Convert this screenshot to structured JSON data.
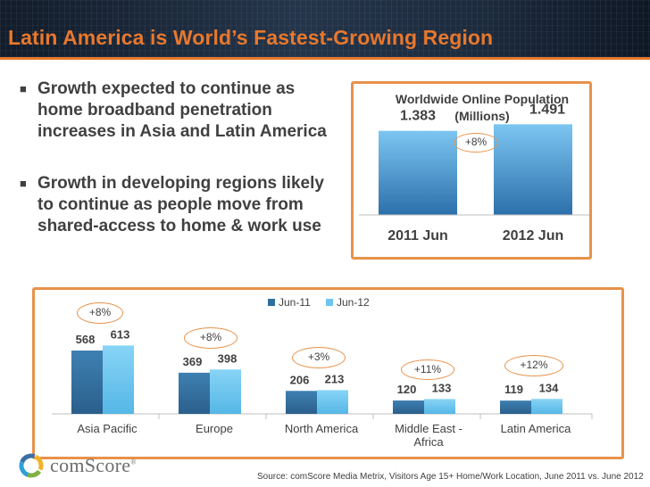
{
  "title": "Latin America is World’s Fastest-Growing Region",
  "bullets": [
    "Growth expected to continue as home broadband penetration increases in Asia and Latin America",
    "Growth in developing regions likely to continue as people move from shared-access to home & work use"
  ],
  "bullet_marker": "■",
  "colors": {
    "accent": "#e8782c",
    "series_jun11": "#2e6f9e",
    "series_jun12": "#6ec6f0",
    "text": "#404040"
  },
  "chart_data": [
    {
      "type": "bar",
      "title": "Worldwide Online Population (Millions)",
      "title_lines": [
        "Worldwide Online Population",
        "(Millions)"
      ],
      "categories": [
        "2011 Jun",
        "2012 Jun"
      ],
      "values": [
        1.383,
        1.491
      ],
      "value_labels": [
        "1.383",
        "1.491"
      ],
      "growth_label": "+8%",
      "ylim": [
        0,
        2.2
      ],
      "xlabel": "",
      "ylabel": "",
      "grid": false
    },
    {
      "type": "bar",
      "title": "",
      "categories": [
        "Asia Pacific",
        "Europe",
        "North America",
        "Middle East - Africa",
        "Latin America"
      ],
      "category_lines": [
        [
          "Asia Pacific"
        ],
        [
          "Europe"
        ],
        [
          "North America"
        ],
        [
          "Middle East -",
          "Africa"
        ],
        [
          "Latin America"
        ]
      ],
      "series": [
        {
          "name": "Jun-11",
          "values": [
            568,
            369,
            206,
            120,
            119
          ]
        },
        {
          "name": "Jun-12",
          "values": [
            613,
            398,
            213,
            133,
            134
          ]
        }
      ],
      "growth_labels": [
        "+8%",
        "+8%",
        "+3%",
        "+11%",
        "+12%"
      ],
      "legend": "top-center",
      "ylim": [
        0,
        1000
      ],
      "xlabel": "",
      "ylabel": "",
      "grid": false
    }
  ],
  "logo": {
    "name": "comScore",
    "mark": "®"
  },
  "source": "Source: comScore Media Metrix, Visitors Age 15+ Home/Work Location, June 2011 vs. June 2012"
}
